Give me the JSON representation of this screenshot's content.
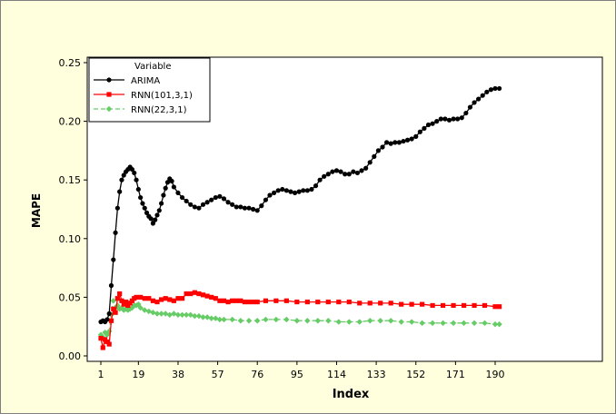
{
  "chart_data": {
    "type": "line",
    "title": "",
    "xlabel": "Index",
    "ylabel": "MAPE",
    "xlim": [
      1,
      192
    ],
    "ylim": [
      0.0,
      0.25
    ],
    "x_ticks": [
      1,
      19,
      38,
      57,
      76,
      95,
      114,
      133,
      152,
      171,
      190
    ],
    "y_ticks": [
      0.0,
      0.05,
      0.1,
      0.15,
      0.2,
      0.25
    ],
    "y_tick_labels": [
      "0.00",
      "0.05",
      "0.10",
      "0.15",
      "0.20",
      "0.25"
    ],
    "grid": false,
    "legend": {
      "title": "Variable",
      "placement": "top-left"
    },
    "series": [
      {
        "name": "ARIMA",
        "color": "#000000",
        "line_style": "solid",
        "marker": "circle",
        "points": [
          [
            1,
            0.029
          ],
          [
            2,
            0.03
          ],
          [
            3,
            0.029
          ],
          [
            4,
            0.031
          ],
          [
            5,
            0.036
          ],
          [
            6,
            0.06
          ],
          [
            7,
            0.082
          ],
          [
            8,
            0.105
          ],
          [
            9,
            0.126
          ],
          [
            10,
            0.14
          ],
          [
            11,
            0.15
          ],
          [
            12,
            0.154
          ],
          [
            13,
            0.157
          ],
          [
            14,
            0.159
          ],
          [
            15,
            0.161
          ],
          [
            16,
            0.159
          ],
          [
            17,
            0.156
          ],
          [
            18,
            0.15
          ],
          [
            19,
            0.142
          ],
          [
            20,
            0.135
          ],
          [
            21,
            0.13
          ],
          [
            22,
            0.126
          ],
          [
            23,
            0.122
          ],
          [
            24,
            0.119
          ],
          [
            25,
            0.117
          ],
          [
            26,
            0.113
          ],
          [
            27,
            0.116
          ],
          [
            28,
            0.12
          ],
          [
            29,
            0.124
          ],
          [
            30,
            0.13
          ],
          [
            31,
            0.137
          ],
          [
            32,
            0.143
          ],
          [
            33,
            0.148
          ],
          [
            34,
            0.151
          ],
          [
            35,
            0.149
          ],
          [
            36,
            0.144
          ],
          [
            38,
            0.139
          ],
          [
            40,
            0.135
          ],
          [
            42,
            0.132
          ],
          [
            44,
            0.129
          ],
          [
            46,
            0.127
          ],
          [
            48,
            0.126
          ],
          [
            50,
            0.129
          ],
          [
            52,
            0.131
          ],
          [
            54,
            0.133
          ],
          [
            56,
            0.135
          ],
          [
            58,
            0.136
          ],
          [
            60,
            0.134
          ],
          [
            62,
            0.131
          ],
          [
            64,
            0.129
          ],
          [
            66,
            0.127
          ],
          [
            68,
            0.127
          ],
          [
            70,
            0.126
          ],
          [
            72,
            0.126
          ],
          [
            74,
            0.125
          ],
          [
            76,
            0.124
          ],
          [
            78,
            0.128
          ],
          [
            80,
            0.133
          ],
          [
            82,
            0.137
          ],
          [
            84,
            0.139
          ],
          [
            86,
            0.141
          ],
          [
            88,
            0.142
          ],
          [
            90,
            0.141
          ],
          [
            92,
            0.14
          ],
          [
            94,
            0.139
          ],
          [
            96,
            0.14
          ],
          [
            98,
            0.141
          ],
          [
            100,
            0.141
          ],
          [
            102,
            0.142
          ],
          [
            104,
            0.145
          ],
          [
            106,
            0.15
          ],
          [
            108,
            0.153
          ],
          [
            110,
            0.155
          ],
          [
            112,
            0.157
          ],
          [
            114,
            0.158
          ],
          [
            116,
            0.157
          ],
          [
            118,
            0.155
          ],
          [
            120,
            0.155
          ],
          [
            122,
            0.157
          ],
          [
            124,
            0.156
          ],
          [
            126,
            0.158
          ],
          [
            128,
            0.16
          ],
          [
            130,
            0.165
          ],
          [
            132,
            0.17
          ],
          [
            134,
            0.175
          ],
          [
            136,
            0.178
          ],
          [
            138,
            0.182
          ],
          [
            140,
            0.181
          ],
          [
            142,
            0.182
          ],
          [
            144,
            0.182
          ],
          [
            146,
            0.183
          ],
          [
            148,
            0.184
          ],
          [
            150,
            0.185
          ],
          [
            152,
            0.187
          ],
          [
            154,
            0.191
          ],
          [
            156,
            0.194
          ],
          [
            158,
            0.197
          ],
          [
            160,
            0.198
          ],
          [
            162,
            0.2
          ],
          [
            164,
            0.202
          ],
          [
            166,
            0.202
          ],
          [
            168,
            0.201
          ],
          [
            170,
            0.202
          ],
          [
            172,
            0.202
          ],
          [
            174,
            0.203
          ],
          [
            176,
            0.207
          ],
          [
            178,
            0.212
          ],
          [
            180,
            0.216
          ],
          [
            182,
            0.219
          ],
          [
            184,
            0.222
          ],
          [
            186,
            0.225
          ],
          [
            188,
            0.227
          ],
          [
            190,
            0.228
          ],
          [
            192,
            0.228
          ]
        ]
      },
      {
        "name": "RNN(101,3,1)",
        "color": "#ff0000",
        "line_style": "solid",
        "marker": "square",
        "points": [
          [
            1,
            0.015
          ],
          [
            2,
            0.007
          ],
          [
            3,
            0.014
          ],
          [
            4,
            0.012
          ],
          [
            5,
            0.01
          ],
          [
            6,
            0.03
          ],
          [
            7,
            0.04
          ],
          [
            8,
            0.037
          ],
          [
            9,
            0.049
          ],
          [
            10,
            0.053
          ],
          [
            11,
            0.047
          ],
          [
            12,
            0.044
          ],
          [
            13,
            0.046
          ],
          [
            14,
            0.043
          ],
          [
            15,
            0.045
          ],
          [
            16,
            0.047
          ],
          [
            17,
            0.049
          ],
          [
            18,
            0.05
          ],
          [
            20,
            0.05
          ],
          [
            22,
            0.049
          ],
          [
            24,
            0.049
          ],
          [
            26,
            0.047
          ],
          [
            28,
            0.046
          ],
          [
            30,
            0.048
          ],
          [
            32,
            0.049
          ],
          [
            34,
            0.048
          ],
          [
            36,
            0.047
          ],
          [
            38,
            0.049
          ],
          [
            40,
            0.049
          ],
          [
            42,
            0.053
          ],
          [
            44,
            0.053
          ],
          [
            46,
            0.054
          ],
          [
            48,
            0.053
          ],
          [
            50,
            0.052
          ],
          [
            52,
            0.051
          ],
          [
            54,
            0.05
          ],
          [
            56,
            0.049
          ],
          [
            58,
            0.047
          ],
          [
            60,
            0.047
          ],
          [
            62,
            0.046
          ],
          [
            64,
            0.047
          ],
          [
            66,
            0.047
          ],
          [
            68,
            0.047
          ],
          [
            70,
            0.046
          ],
          [
            72,
            0.046
          ],
          [
            74,
            0.046
          ],
          [
            76,
            0.046
          ],
          [
            80,
            0.047
          ],
          [
            85,
            0.047
          ],
          [
            90,
            0.047
          ],
          [
            95,
            0.046
          ],
          [
            100,
            0.046
          ],
          [
            105,
            0.046
          ],
          [
            110,
            0.046
          ],
          [
            115,
            0.046
          ],
          [
            120,
            0.046
          ],
          [
            125,
            0.045
          ],
          [
            130,
            0.045
          ],
          [
            135,
            0.045
          ],
          [
            140,
            0.045
          ],
          [
            145,
            0.044
          ],
          [
            150,
            0.044
          ],
          [
            155,
            0.044
          ],
          [
            160,
            0.043
          ],
          [
            165,
            0.043
          ],
          [
            170,
            0.043
          ],
          [
            175,
            0.043
          ],
          [
            180,
            0.043
          ],
          [
            185,
            0.043
          ],
          [
            190,
            0.042
          ],
          [
            192,
            0.042
          ]
        ]
      },
      {
        "name": "RNN(22,3,1)",
        "color": "#66cc66",
        "line_style": "dashed",
        "marker": "diamond",
        "points": [
          [
            1,
            0.018
          ],
          [
            2,
            0.016
          ],
          [
            3,
            0.02
          ],
          [
            4,
            0.018
          ],
          [
            5,
            0.021
          ],
          [
            6,
            0.035
          ],
          [
            7,
            0.047
          ],
          [
            8,
            0.041
          ],
          [
            9,
            0.043
          ],
          [
            10,
            0.04
          ],
          [
            11,
            0.041
          ],
          [
            12,
            0.039
          ],
          [
            13,
            0.04
          ],
          [
            14,
            0.039
          ],
          [
            15,
            0.04
          ],
          [
            16,
            0.041
          ],
          [
            17,
            0.043
          ],
          [
            18,
            0.043
          ],
          [
            19,
            0.044
          ],
          [
            20,
            0.041
          ],
          [
            22,
            0.039
          ],
          [
            24,
            0.038
          ],
          [
            26,
            0.037
          ],
          [
            28,
            0.036
          ],
          [
            30,
            0.036
          ],
          [
            32,
            0.036
          ],
          [
            34,
            0.035
          ],
          [
            36,
            0.036
          ],
          [
            38,
            0.035
          ],
          [
            40,
            0.035
          ],
          [
            42,
            0.035
          ],
          [
            44,
            0.035
          ],
          [
            46,
            0.034
          ],
          [
            48,
            0.034
          ],
          [
            50,
            0.033
          ],
          [
            52,
            0.033
          ],
          [
            54,
            0.032
          ],
          [
            56,
            0.032
          ],
          [
            58,
            0.031
          ],
          [
            60,
            0.031
          ],
          [
            64,
            0.031
          ],
          [
            68,
            0.03
          ],
          [
            72,
            0.03
          ],
          [
            76,
            0.03
          ],
          [
            80,
            0.031
          ],
          [
            85,
            0.031
          ],
          [
            90,
            0.031
          ],
          [
            95,
            0.03
          ],
          [
            100,
            0.03
          ],
          [
            105,
            0.03
          ],
          [
            110,
            0.03
          ],
          [
            115,
            0.029
          ],
          [
            120,
            0.029
          ],
          [
            125,
            0.029
          ],
          [
            130,
            0.03
          ],
          [
            135,
            0.03
          ],
          [
            140,
            0.03
          ],
          [
            145,
            0.029
          ],
          [
            150,
            0.029
          ],
          [
            155,
            0.028
          ],
          [
            160,
            0.028
          ],
          [
            165,
            0.028
          ],
          [
            170,
            0.028
          ],
          [
            175,
            0.028
          ],
          [
            180,
            0.028
          ],
          [
            185,
            0.028
          ],
          [
            190,
            0.027
          ],
          [
            192,
            0.027
          ]
        ]
      }
    ]
  }
}
